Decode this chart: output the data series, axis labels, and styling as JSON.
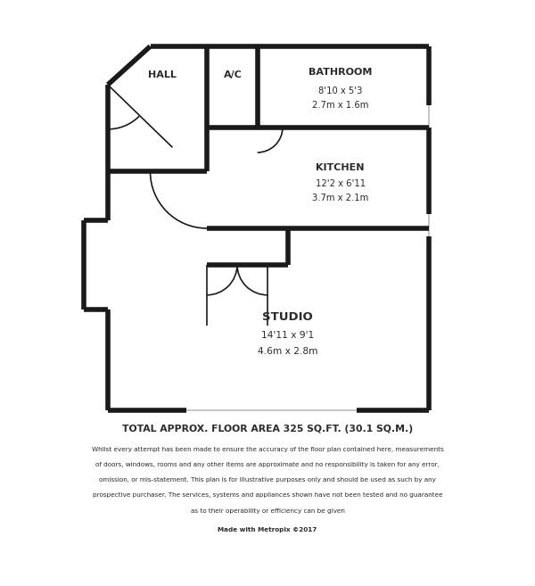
{
  "bg_color": "#ffffff",
  "wall_color": "#1a1a1a",
  "wall_lw": 4.0,
  "thin_lw": 1.2,
  "window_color": "#bbbbbb",
  "fig_width": 6.0,
  "fig_height": 6.57,
  "title_text": "TOTAL APPROX. FLOOR AREA 325 SQ.FT. (30.1 SQ.M.)",
  "disclaimer_lines": [
    "Whilst every attempt has been made to ensure the accuracy of the floor plan contained here, measurements",
    "of doors, windows, rooms and any other items are approximate and no responsibility is taken for any error,",
    "omission, or mis-statement. This plan is for illustrative purposes only and should be used as such by any",
    "prospective purchaser. The services, systems and appliances shown have not been tested and no guarantee",
    "as to their operability or efficiency can be given"
  ],
  "credit": "Made with Metropix ©2017",
  "hall_label": "HALL",
  "ac_label": "A/C",
  "bathroom_label": "BATHROOM",
  "bathroom_dim1": "8'10 x 5'3",
  "bathroom_dim2": "2.7m x 1.6m",
  "kitchen_label": "KITCHEN",
  "kitchen_dim1": "12'2 x 6'11",
  "kitchen_dim2": "3.7m x 2.1m",
  "studio_label": "STUDIO",
  "studio_dim1": "14'11 x 9'1",
  "studio_dim2": "4.6m x 2.8m"
}
